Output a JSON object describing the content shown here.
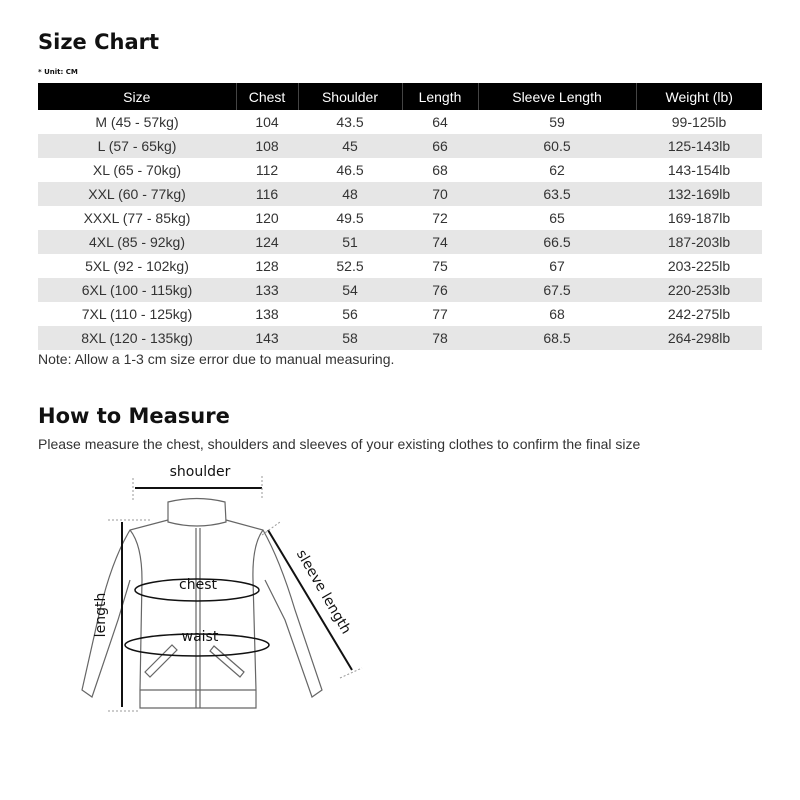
{
  "size_chart": {
    "title": "Size Chart",
    "unit": "* Unit: CM",
    "columns": [
      "Size",
      "Chest",
      "Shoulder",
      "Length",
      "Sleeve Length",
      "Weight (lb)"
    ],
    "rows": [
      [
        "M (45 - 57kg)",
        "104",
        "43.5",
        "64",
        "59",
        "99-125lb"
      ],
      [
        "L (57 - 65kg)",
        "108",
        "45",
        "66",
        "60.5",
        "125-143lb"
      ],
      [
        "XL (65 - 70kg)",
        "112",
        "46.5",
        "68",
        "62",
        "143-154lb"
      ],
      [
        "XXL (60 - 77kg)",
        "116",
        "48",
        "70",
        "63.5",
        "132-169lb"
      ],
      [
        "XXXL (77 - 85kg)",
        "120",
        "49.5",
        "72",
        "65",
        "169-187lb"
      ],
      [
        "4XL (85 - 92kg)",
        "124",
        "51",
        "74",
        "66.5",
        "187-203lb"
      ],
      [
        "5XL (92 - 102kg)",
        "128",
        "52.5",
        "75",
        "67",
        "203-225lb"
      ],
      [
        "6XL (100 - 115kg)",
        "133",
        "54",
        "76",
        "67.5",
        "220-253lb"
      ],
      [
        "7XL (110 - 125kg)",
        "138",
        "56",
        "77",
        "68",
        "242-275lb"
      ],
      [
        "8XL (120 - 135kg)",
        "143",
        "58",
        "78",
        "68.5",
        "264-298lb"
      ]
    ],
    "note": "Note: Allow a 1-3 cm size error due to manual measuring."
  },
  "how_to_measure": {
    "title": "How to Measure",
    "subtitle": "Please measure the chest, shoulders and sleeves of your existing clothes to confirm the final size",
    "labels": {
      "shoulder": "shoulder",
      "chest": "chest",
      "waist": "waist",
      "length": "length",
      "sleeve": "sleeve length"
    }
  }
}
